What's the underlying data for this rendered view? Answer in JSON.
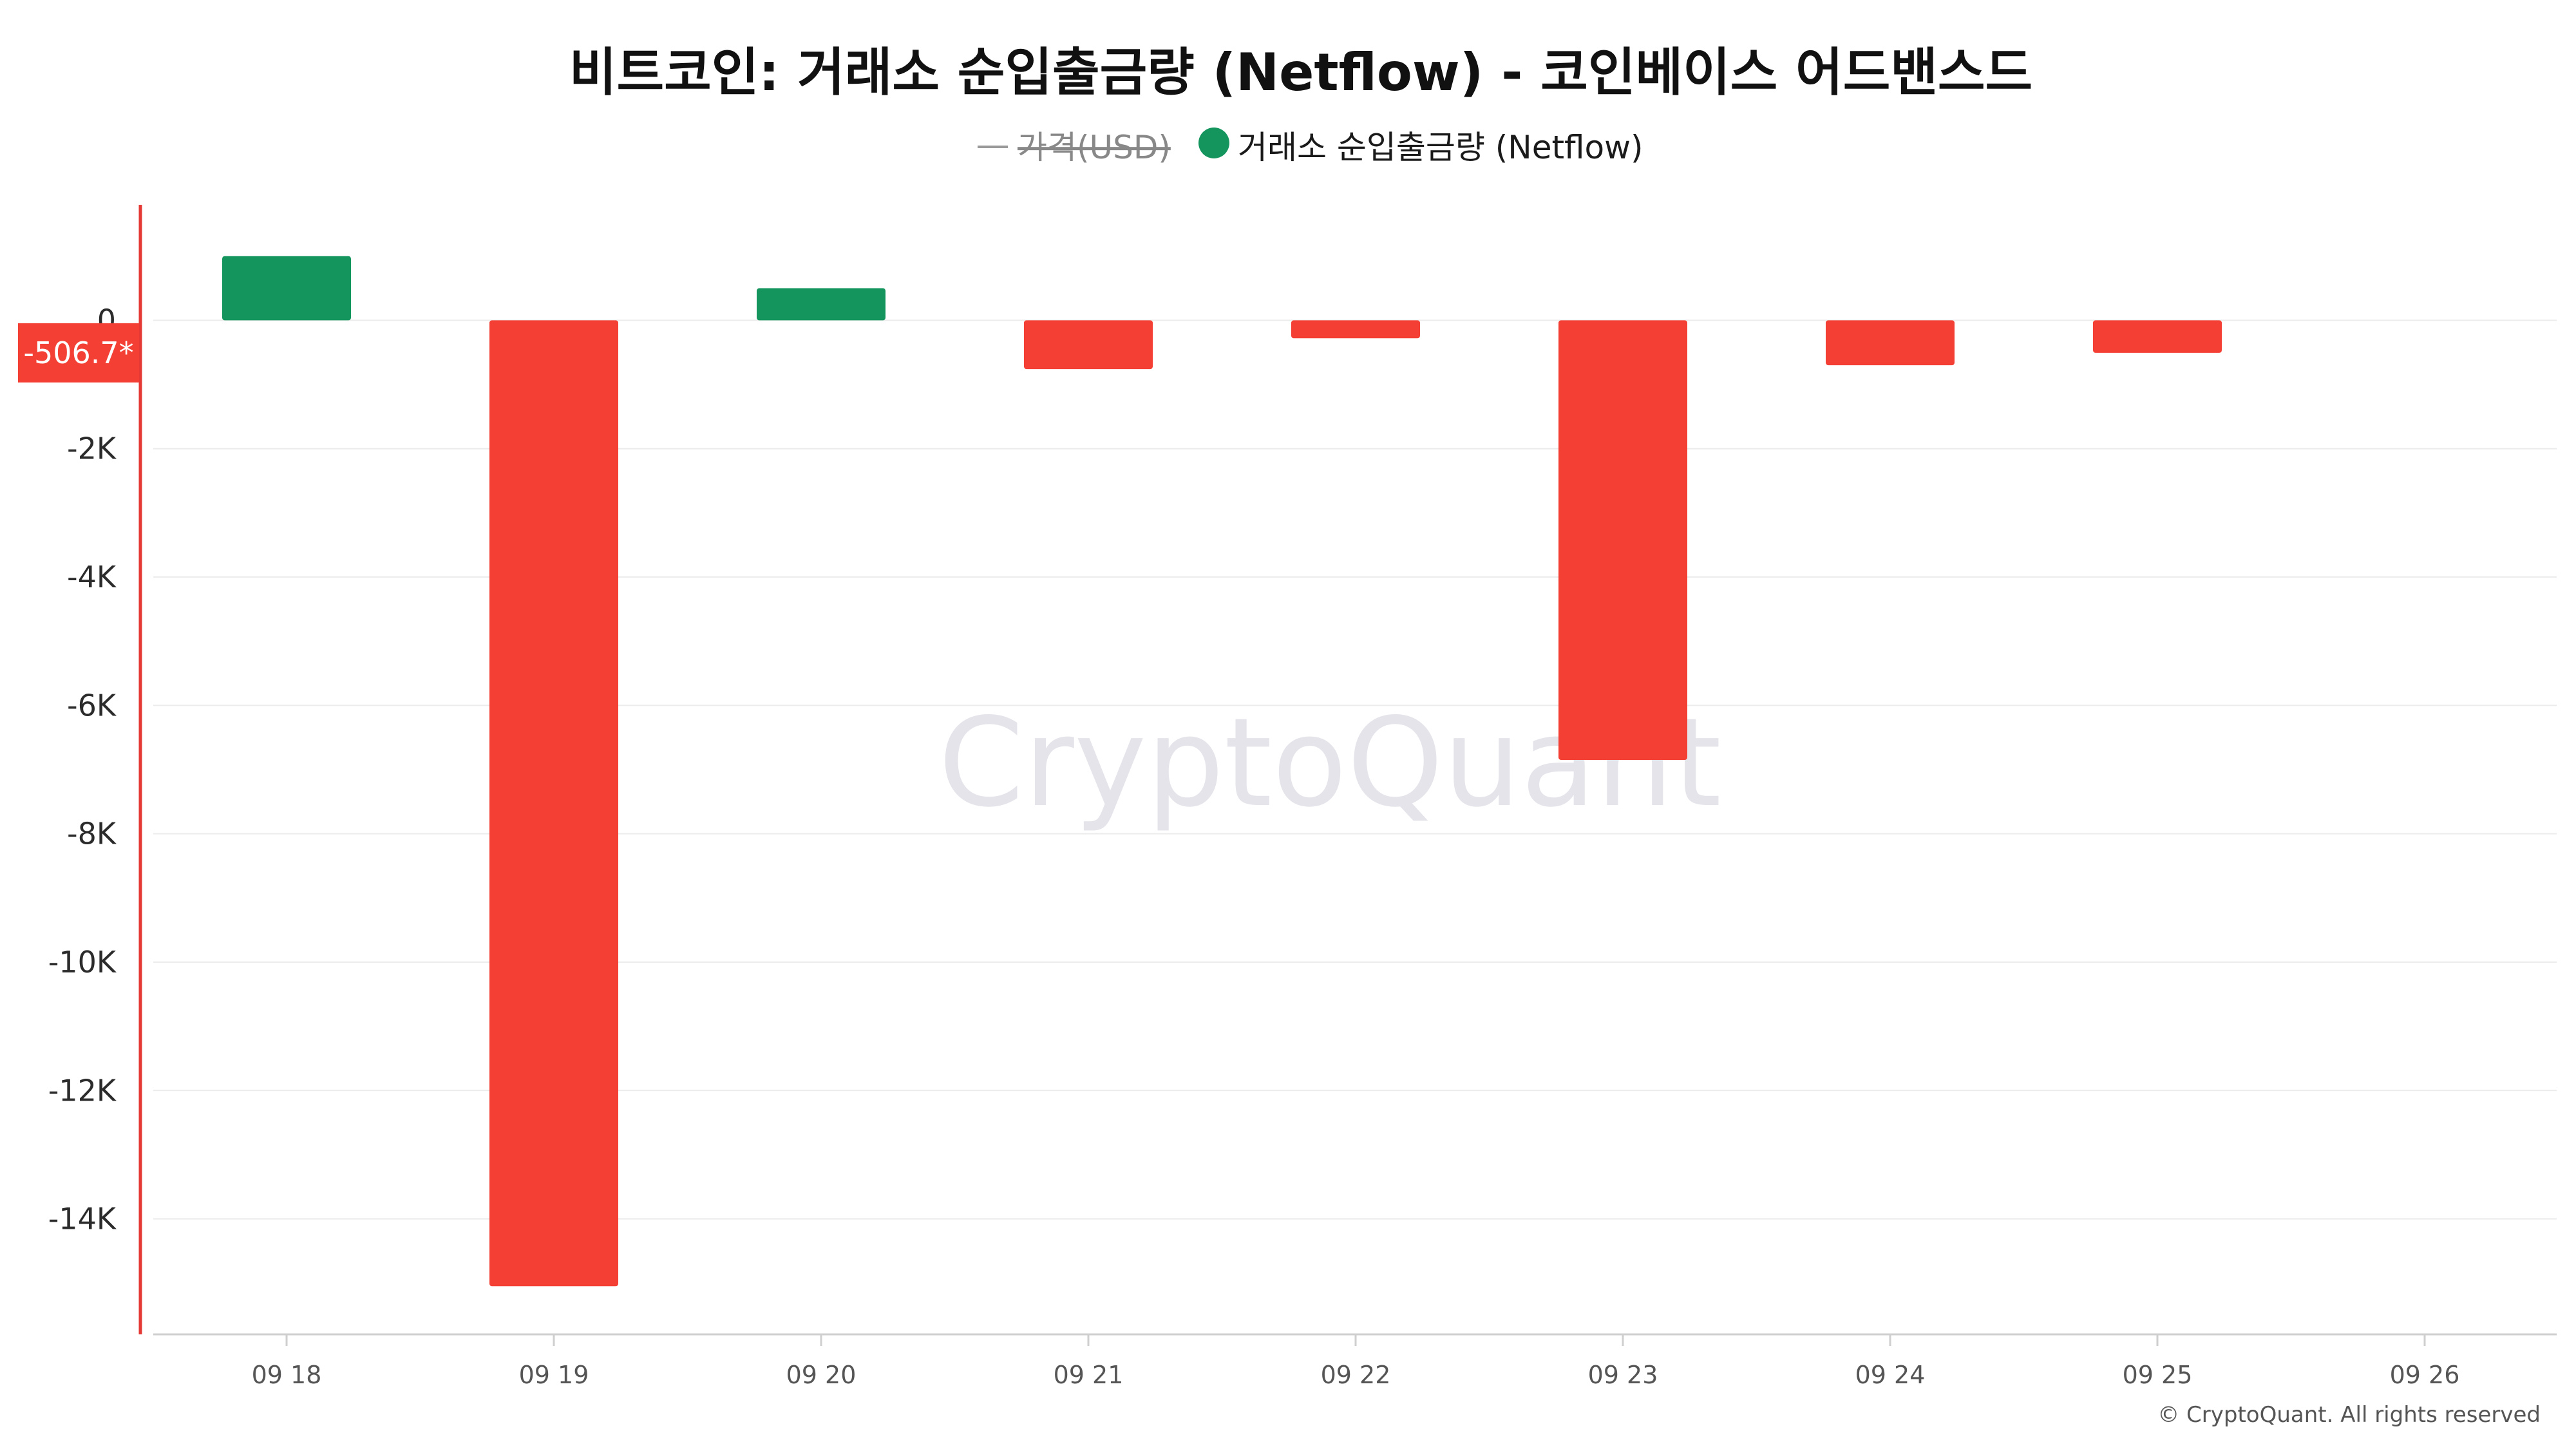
{
  "chart_data": {
    "type": "bar",
    "title": "비트코인: 거래소 순입출금량 (Netflow) - 코인베이스 어드밴스드",
    "legend": [
      {
        "label": "가격(USD)",
        "marker": "line",
        "color": "#888888",
        "hidden": true
      },
      {
        "label": "거래소 순입출금량 (Netflow)",
        "marker": "dot",
        "color": "#14955e",
        "hidden": false
      }
    ],
    "legend_position": "top-center",
    "categories": [
      "09 18",
      "09 19",
      "09 20",
      "09 21",
      "09 22",
      "09 23",
      "09 24",
      "09 25",
      "09 26"
    ],
    "series": [
      {
        "name": "거래소 순입출금량 (Netflow)",
        "values": [
          1000,
          -15050,
          500,
          -760,
          -280,
          -6850,
          -700,
          -506.7,
          null
        ]
      }
    ],
    "ylim": [
      -15800,
      1800
    ],
    "yticks": [
      0,
      -2000,
      -4000,
      -6000,
      -8000,
      -10000,
      -12000,
      -14000
    ],
    "ytick_labels": [
      "0",
      "-2K",
      "-4K",
      "-6K",
      "-8K",
      "-10K",
      "-12K",
      "-14K"
    ],
    "xlabel": "",
    "ylabel": "",
    "grid": true,
    "positive_color": "#14955e",
    "negative_color": "#f43f35",
    "last_value_label": "-506.7*",
    "last_value": -506.7,
    "watermark": "CryptoQuant",
    "copyright": "© CryptoQuant. All rights reserved"
  }
}
